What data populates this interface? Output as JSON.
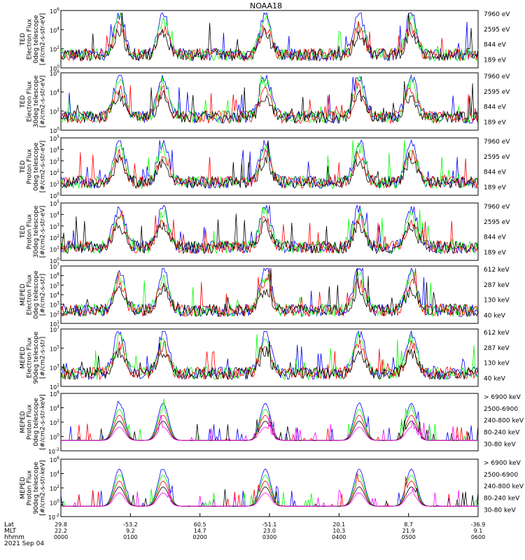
{
  "title": "NOAA18",
  "date_label": "2021 Sep 04",
  "colors": {
    "black": "#000000",
    "red": "#ff0000",
    "green": "#00ff00",
    "blue": "#0000ff",
    "magenta": "#ff00ff"
  },
  "bottom_axis": {
    "row_labels": [
      "Lat",
      "MLT",
      "hhmm"
    ],
    "ticks": [
      {
        "lat": "29.8",
        "mlt": "22.2",
        "time": "0000"
      },
      {
        "lat": "-53.2",
        "mlt": "9.2",
        "time": "0100"
      },
      {
        "lat": "60.5",
        "mlt": "14.7",
        "time": "0200"
      },
      {
        "lat": "-51.1",
        "mlt": "23.0",
        "time": "0300"
      },
      {
        "lat": "20.1",
        "mlt": "10.3",
        "time": "0400"
      },
      {
        "lat": "8.7",
        "mlt": "21.9",
        "time": "0500"
      },
      {
        "lat": "-36.9",
        "mlt": "9.1",
        "time": "0600"
      }
    ]
  },
  "chart_data": [
    {
      "type": "line",
      "ylabel": [
        "TED",
        "Electron Flux",
        "0deg telescope",
        "[#/cm2-s-str-eV]"
      ],
      "yscale": "log",
      "ylim_exp": [
        0,
        6
      ],
      "ytick_exps": [
        0,
        2,
        4,
        6
      ],
      "series": [
        {
          "name": "7960 eV",
          "color": "black"
        },
        {
          "name": "2595 eV",
          "color": "red"
        },
        {
          "name": "844 eV",
          "color": "green"
        },
        {
          "name": "189 eV",
          "color": "blue"
        }
      ]
    },
    {
      "type": "line",
      "ylabel": [
        "TED",
        "Electron Flux",
        "30deg telescope",
        "[#/cm2-s-str-eV]"
      ],
      "yscale": "log",
      "ylim_exp": [
        0,
        6
      ],
      "ytick_exps": [
        0,
        2,
        4,
        6
      ],
      "series": [
        {
          "name": "7960 eV",
          "color": "black"
        },
        {
          "name": "2595 eV",
          "color": "red"
        },
        {
          "name": "844 eV",
          "color": "green"
        },
        {
          "name": "189 eV",
          "color": "blue"
        }
      ]
    },
    {
      "type": "line",
      "ylabel": [
        "TED",
        "Proton Flux",
        "0deg telescope",
        "[#/cm2-s-str-eV]"
      ],
      "yscale": "log",
      "ylim_exp": [
        0,
        5
      ],
      "ytick_exps": [
        0,
        1,
        2,
        3,
        4,
        5
      ],
      "series": [
        {
          "name": "7960 eV",
          "color": "black"
        },
        {
          "name": "2595 eV",
          "color": "red"
        },
        {
          "name": "844 eV",
          "color": "green"
        },
        {
          "name": "189 eV",
          "color": "blue"
        }
      ]
    },
    {
      "type": "line",
      "ylabel": [
        "TED",
        "Proton Flux",
        "30deg telescope",
        "[#/cm2-s-str-eV]"
      ],
      "yscale": "log",
      "ylim_exp": [
        0,
        5
      ],
      "ytick_exps": [
        0,
        1,
        2,
        3,
        4,
        5
      ],
      "series": [
        {
          "name": "7960 eV",
          "color": "black"
        },
        {
          "name": "2595 eV",
          "color": "red"
        },
        {
          "name": "844 eV",
          "color": "green"
        },
        {
          "name": "189 eV",
          "color": "blue"
        }
      ]
    },
    {
      "type": "line",
      "ylabel": [
        "MEPED",
        "Electron Flux",
        "0deg telescope",
        "[#/cm2-s-str]"
      ],
      "yscale": "log",
      "ylim_exp": [
        1,
        7
      ],
      "ytick_exps": [
        1,
        2,
        3,
        4,
        5,
        6,
        7
      ],
      "series": [
        {
          "name": "612 keV",
          "color": "black"
        },
        {
          "name": "287 keV",
          "color": "red"
        },
        {
          "name": "130 keV",
          "color": "green"
        },
        {
          "name": "40 keV",
          "color": "blue"
        }
      ]
    },
    {
      "type": "line",
      "ylabel": [
        "MEPED",
        "Electron Flux",
        "90deg telescope",
        "[#/cm2-s-str]"
      ],
      "yscale": "log",
      "ylim_exp": [
        1,
        7
      ],
      "ytick_exps": [
        1,
        3,
        5,
        7
      ],
      "series": [
        {
          "name": "612 keV",
          "color": "black"
        },
        {
          "name": "287 keV",
          "color": "red"
        },
        {
          "name": "130 keV",
          "color": "green"
        },
        {
          "name": "40 keV",
          "color": "blue"
        }
      ]
    },
    {
      "type": "line",
      "ylabel": [
        "MEPED",
        "Proton Flux",
        "0deg telescope",
        "[#/cm2-s-str-keV]"
      ],
      "yscale": "log",
      "ylim_exp": [
        -2,
        6
      ],
      "ytick_exps": [
        -2,
        0,
        2,
        4,
        6
      ],
      "series": [
        {
          "name": "> 6900 keV",
          "color": "magenta"
        },
        {
          "name": "2500-6900",
          "color": "black"
        },
        {
          "name": "240-800 keV",
          "color": "red"
        },
        {
          "name": "80-240 keV",
          "color": "green"
        },
        {
          "name": "30-80 keV",
          "color": "blue"
        }
      ]
    },
    {
      "type": "line",
      "ylabel": [
        "MEPED",
        "Proton Flux",
        "90deg telescope",
        "[#/cm2-s-str-keV]"
      ],
      "yscale": "log",
      "ylim_exp": [
        -2,
        6
      ],
      "ytick_exps": [
        -2,
        0,
        2,
        4,
        6
      ],
      "series": [
        {
          "name": "> 6900 keV",
          "color": "magenta"
        },
        {
          "name": "2500-6900",
          "color": "black"
        },
        {
          "name": "240-800 keV",
          "color": "red"
        },
        {
          "name": "80-240 keV",
          "color": "green"
        },
        {
          "name": "30-80 keV",
          "color": "blue"
        }
      ]
    }
  ]
}
